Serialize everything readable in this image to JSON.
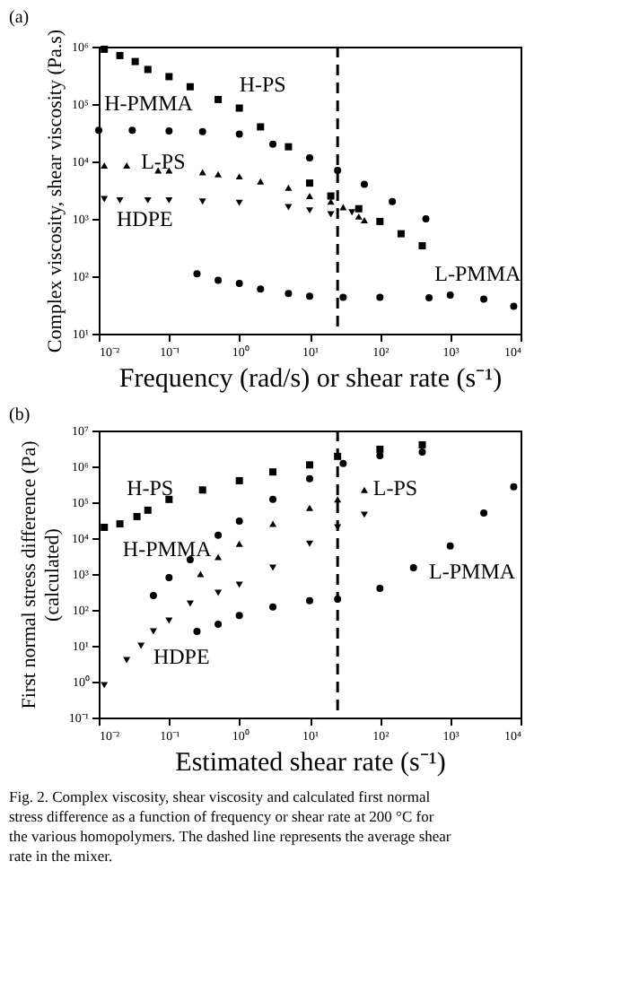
{
  "chart_data": [
    {
      "type": "scatter",
      "title": "(a)",
      "xlabel": "Frequency (rad/s) or shear rate (s⁻¹)",
      "ylabel": "Complex  viscosity, shear viscosity (Pa.s)",
      "log": "xy",
      "grid": false,
      "xlim": [
        0.01,
        10000
      ],
      "ylim": [
        10,
        1000000
      ],
      "xticks": [
        {
          "value": 0.01,
          "label": "10⁻²"
        },
        {
          "value": 0.1,
          "label": "10⁻¹"
        },
        {
          "value": 1,
          "label": "10⁰"
        },
        {
          "value": 10,
          "label": "10¹"
        },
        {
          "value": 100,
          "label": "10²"
        },
        {
          "value": 1000,
          "label": "10³"
        },
        {
          "value": 10000,
          "label": "10⁴"
        }
      ],
      "yticks": [
        {
          "value": 10,
          "label": "10¹"
        },
        {
          "value": 100,
          "label": "10²"
        },
        {
          "value": 1000,
          "label": "10³"
        },
        {
          "value": 10000,
          "label": "10⁴"
        },
        {
          "value": 100000,
          "label": "10⁵"
        },
        {
          "value": 1000000,
          "label": "10⁶"
        }
      ],
      "ref_lines": [
        {
          "axis": "x",
          "value": 25,
          "line_style": "dashed",
          "color": "#000000"
        }
      ],
      "series": [
        {
          "name": "H-PS",
          "color": "#000000",
          "marker": "square",
          "x": [
            0.012,
            0.02,
            0.033,
            0.05,
            0.1,
            0.2,
            0.5,
            1,
            2,
            5,
            10,
            20,
            50,
            100,
            200,
            400
          ],
          "values": [
            900000,
            700000,
            550000,
            400000,
            300000,
            200000,
            120000,
            85000,
            40000,
            18000,
            4200,
            2500,
            1500,
            900,
            550,
            340
          ]
        },
        {
          "name": "H-PMMA",
          "color": "#000000",
          "marker": "circle",
          "x": [
            0.01,
            0.03,
            0.1,
            0.3,
            1,
            3,
            10,
            25,
            60,
            150,
            450
          ],
          "values": [
            35000,
            35000,
            34000,
            33000,
            30000,
            20000,
            11500,
            7000,
            4000,
            2000,
            1000
          ]
        },
        {
          "name": "L-PS",
          "color": "#000000",
          "marker": "triangle",
          "x": [
            0.012,
            0.025,
            0.07,
            0.1,
            0.3,
            0.5,
            1,
            2,
            5,
            10,
            20,
            30,
            50,
            60
          ],
          "values": [
            8500,
            8500,
            7000,
            7000,
            6500,
            6000,
            5500,
            4500,
            3500,
            2500,
            2000,
            1600,
            1100,
            950
          ]
        },
        {
          "name": "HDPE",
          "color": "#000000",
          "marker": "triangle-down",
          "x": [
            0.012,
            0.02,
            0.05,
            0.1,
            0.3,
            1,
            5,
            10,
            20,
            40
          ],
          "values": [
            2200,
            2100,
            2100,
            2100,
            2000,
            1900,
            1600,
            1400,
            1200,
            1300
          ]
        },
        {
          "name": "L-PMMA",
          "color": "#000000",
          "marker": "circle",
          "x": [
            0.25,
            0.5,
            1,
            2,
            5,
            10,
            30,
            100,
            500,
            1000,
            3000,
            8000
          ],
          "values": [
            110,
            85,
            75,
            60,
            50,
            45,
            43,
            43,
            42,
            47,
            40,
            30
          ]
        }
      ]
    },
    {
      "type": "scatter",
      "title": "(b)",
      "xlabel": "Estimated shear rate (s⁻¹)",
      "ylabel": "First normal stress difference (Pa)\n(calculated)",
      "log": "xy",
      "grid": false,
      "xlim": [
        0.01,
        10000
      ],
      "ylim": [
        0.1,
        10000000
      ],
      "xticks": [
        {
          "value": 0.01,
          "label": "10⁻²"
        },
        {
          "value": 0.1,
          "label": "10⁻¹"
        },
        {
          "value": 1,
          "label": "10⁰"
        },
        {
          "value": 10,
          "label": "10¹"
        },
        {
          "value": 100,
          "label": "10²"
        },
        {
          "value": 1000,
          "label": "10³"
        },
        {
          "value": 10000,
          "label": "10⁴"
        }
      ],
      "yticks": [
        {
          "value": 0.1,
          "label": "10⁻¹"
        },
        {
          "value": 1,
          "label": "10⁰"
        },
        {
          "value": 10,
          "label": "10¹"
        },
        {
          "value": 100,
          "label": "10²"
        },
        {
          "value": 1000,
          "label": "10³"
        },
        {
          "value": 10000,
          "label": "10⁴"
        },
        {
          "value": 100000,
          "label": "10⁵"
        },
        {
          "value": 1000000,
          "label": "10⁶"
        },
        {
          "value": 10000000,
          "label": "10⁷"
        }
      ],
      "ref_lines": [
        {
          "axis": "x",
          "value": 25,
          "line_style": "dashed",
          "color": "#000000"
        }
      ],
      "annotations": [
        "Fig. 2. Complex viscosity, shear viscosity and calculated first normal stress difference as a function of frequency or shear rate at 200 °C for the various homopolymers. The dashed line represents the average shear rate in the mixer."
      ],
      "series": [
        {
          "name": "H-PS",
          "color": "#000000",
          "marker": "square",
          "x": [
            0.012,
            0.02,
            0.035,
            0.05,
            0.1,
            0.3,
            1,
            3,
            10,
            25,
            100,
            400
          ],
          "values": [
            20000,
            25000,
            40000,
            60000,
            120000,
            220000,
            400000,
            700000,
            1100000,
            1900000,
            3000000,
            4000000
          ]
        },
        {
          "name": "H-PMMA",
          "color": "#000000",
          "marker": "circle",
          "x": [
            0.06,
            0.1,
            0.2,
            0.5,
            1,
            3,
            10,
            30,
            100,
            400
          ],
          "values": [
            250,
            800,
            2500,
            12000,
            30000,
            120000,
            450000,
            1200000,
            2000000,
            2500000
          ]
        },
        {
          "name": "L-PS",
          "color": "#000000",
          "marker": "triangle",
          "x": [
            0.28,
            0.5,
            1,
            3,
            10,
            25,
            60
          ],
          "values": [
            1000,
            3000,
            7000,
            25000,
            70000,
            120000,
            220000
          ]
        },
        {
          "name": "HDPE",
          "color": "#000000",
          "marker": "triangle-down",
          "x": [
            0.012,
            0.025,
            0.04,
            0.06,
            0.1,
            0.2,
            0.5,
            1,
            3,
            10,
            25,
            60
          ],
          "values": [
            0.8,
            4,
            10,
            25,
            50,
            150,
            300,
            500,
            1500,
            7000,
            20000,
            45000
          ]
        },
        {
          "name": "L-PMMA",
          "color": "#000000",
          "marker": "circle",
          "x": [
            0.25,
            0.5,
            1,
            3,
            10,
            25,
            100,
            300,
            1000,
            3000,
            8000
          ],
          "values": [
            25,
            40,
            70,
            120,
            180,
            200,
            400,
            1500,
            6000,
            50000,
            270000
          ]
        }
      ]
    }
  ]
}
